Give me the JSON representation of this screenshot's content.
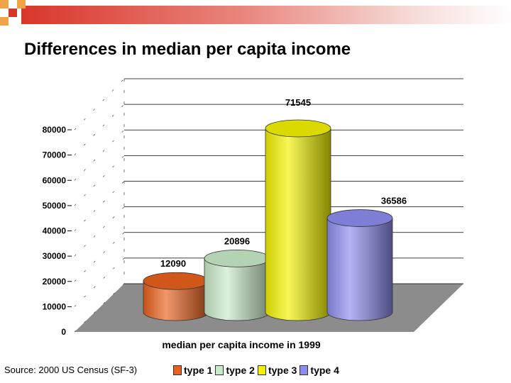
{
  "slide": {
    "title": "Differences in median per capita income",
    "source": "Source: 2000 US Census (SF-3)"
  },
  "colors": {
    "accent_red": "#d9362a",
    "accent_orange": "#f0a347",
    "plot_floor": "#8c8c8c"
  },
  "chart_data": {
    "type": "bar",
    "style": "3d-cylinder",
    "categories": [
      "median per capita income in 1999"
    ],
    "xlabel": "median per capita income in 1999",
    "ylabel": "",
    "ylim": [
      0,
      80000
    ],
    "yticks": [
      "0",
      "10000",
      "20000",
      "30000",
      "40000",
      "50000",
      "60000",
      "70000",
      "80000"
    ],
    "grid": true,
    "legend_placement": "bottom",
    "series": [
      {
        "name": "type 1",
        "values": [
          12090
        ],
        "label": "12090",
        "color": "#e8601c"
      },
      {
        "name": "type 2",
        "values": [
          20896
        ],
        "label": "20896",
        "color": "#c8eac8"
      },
      {
        "name": "type 3",
        "values": [
          71545
        ],
        "label": "71545",
        "color": "#f2f200"
      },
      {
        "name": "type 4",
        "values": [
          36586
        ],
        "label": "36586",
        "color": "#8c8cee"
      }
    ]
  }
}
